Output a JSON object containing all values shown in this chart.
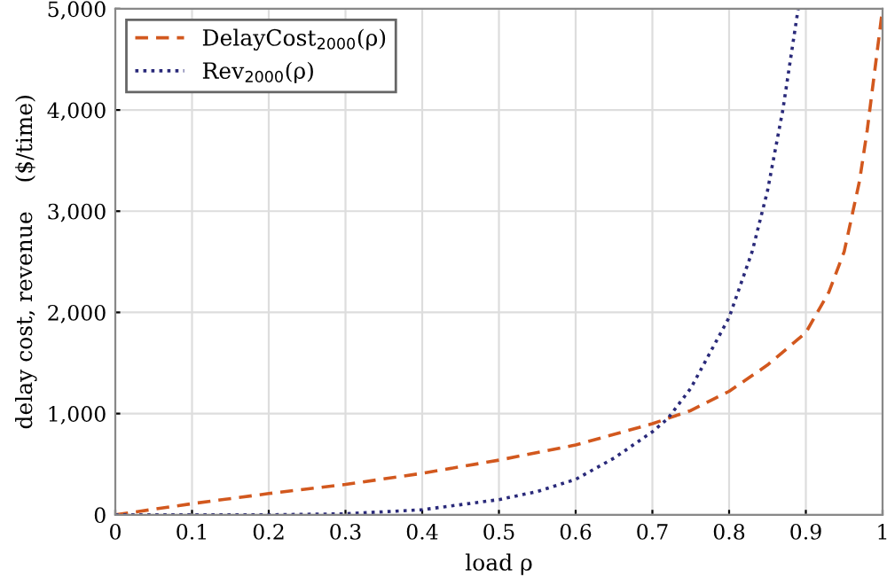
{
  "chart_data": {
    "type": "line",
    "xlabel": "load ρ",
    "ylabel": "delay cost, revenue    ($/time)",
    "xlim": [
      0,
      1
    ],
    "ylim": [
      0,
      5000
    ],
    "xticks": [
      0,
      0.1,
      0.2,
      0.3,
      0.4,
      0.5,
      0.6,
      0.7,
      0.8,
      0.9,
      1
    ],
    "yticks": [
      0,
      {
        "value": 1000,
        "label": "1,000"
      },
      {
        "value": 2000,
        "label": "2,000"
      },
      {
        "value": 3000,
        "label": "3,000"
      },
      {
        "value": 4000,
        "label": "4,000"
      },
      {
        "value": 5000,
        "label": "5,000"
      }
    ],
    "grid": true,
    "legend": "top left",
    "marker": "none",
    "series": [
      {
        "name": "DelayCost$_{2000}$(ρ)",
        "color": "#d2581e",
        "line_style": "dashed",
        "x": [
          0,
          0.1,
          0.2,
          0.3,
          0.4,
          0.5,
          0.6,
          0.7,
          0.75,
          0.8,
          0.85,
          0.9,
          0.93,
          0.95,
          0.97,
          0.98,
          0.99,
          1.0
        ],
        "values": [
          0,
          110,
          210,
          300,
          410,
          540,
          690,
          900,
          1030,
          1220,
          1480,
          1800,
          2200,
          2600,
          3300,
          3800,
          4400,
          5000
        ]
      },
      {
        "name": "Rev$_{2000}$(ρ)",
        "color": "#2a2a7a",
        "line_style": "dotted",
        "x": [
          0,
          0.2,
          0.3,
          0.4,
          0.5,
          0.55,
          0.6,
          0.65,
          0.7,
          0.72,
          0.75,
          0.8,
          0.83,
          0.85,
          0.87,
          0.89
        ],
        "values": [
          0,
          0,
          10,
          50,
          150,
          230,
          350,
          560,
          820,
          950,
          1250,
          1950,
          2600,
          3200,
          4000,
          5000
        ]
      }
    ]
  }
}
